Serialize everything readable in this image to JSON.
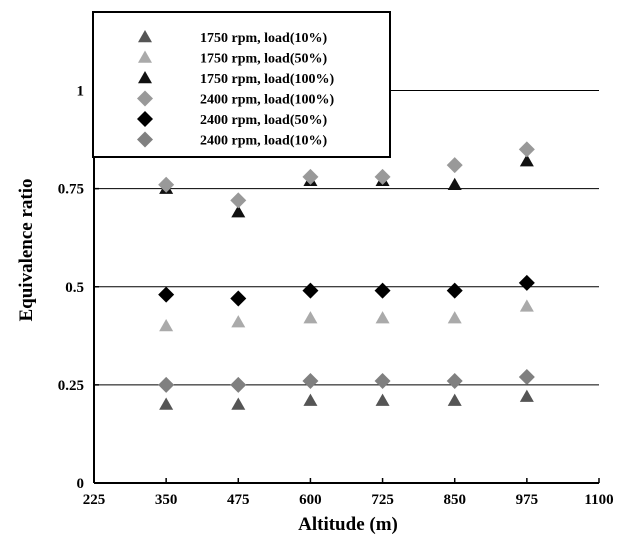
{
  "chart_data": {
    "type": "scatter",
    "title": "",
    "xlabel": "Altitude (m)",
    "ylabel": "Equivalence ratio",
    "xlim": [
      225,
      1100
    ],
    "ylim": [
      0,
      1.2
    ],
    "x_ticks": [
      "225",
      "350",
      "475",
      "600",
      "725",
      "850",
      "975",
      "1100"
    ],
    "y_ticks": [
      "0",
      "0.25",
      "0.5",
      "0.75",
      "1"
    ],
    "grid": "horizontal",
    "legend_position": "top-left",
    "x": [
      350,
      475,
      600,
      725,
      850,
      975
    ],
    "series": [
      {
        "name": "1750 rpm, load(10%)",
        "marker": "triangle",
        "color": "#555555",
        "values": [
          0.2,
          0.2,
          0.21,
          0.21,
          0.21,
          0.22
        ]
      },
      {
        "name": "1750 rpm, load(50%)",
        "marker": "triangle",
        "color": "#aaaaaa",
        "values": [
          0.4,
          0.41,
          0.42,
          0.42,
          0.42,
          0.45
        ]
      },
      {
        "name": "1750 rpm, load(100%)",
        "marker": "triangle",
        "color": "#111111",
        "values": [
          0.75,
          0.69,
          0.77,
          0.77,
          0.76,
          0.82
        ]
      },
      {
        "name": "2400 rpm, load(100%)",
        "marker": "diamond",
        "color": "#999999",
        "values": [
          0.76,
          0.72,
          0.78,
          0.78,
          0.81,
          0.85
        ]
      },
      {
        "name": "2400 rpm, load(50%)",
        "marker": "diamond",
        "color": "#000000",
        "values": [
          0.48,
          0.47,
          0.49,
          0.49,
          0.49,
          0.51
        ]
      },
      {
        "name": "2400 rpm, load(10%)",
        "marker": "diamond",
        "color": "#808080",
        "values": [
          0.25,
          0.25,
          0.26,
          0.26,
          0.26,
          0.27
        ]
      }
    ]
  }
}
